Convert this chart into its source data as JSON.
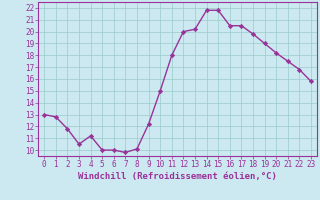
{
  "x": [
    0,
    1,
    2,
    3,
    4,
    5,
    6,
    7,
    8,
    9,
    10,
    11,
    12,
    13,
    14,
    15,
    16,
    17,
    18,
    19,
    20,
    21,
    22,
    23
  ],
  "y": [
    13,
    12.8,
    11.8,
    10.5,
    11.2,
    10.0,
    10.0,
    9.8,
    10.1,
    12.2,
    15.0,
    18.0,
    20.0,
    20.2,
    21.8,
    21.8,
    20.5,
    20.5,
    19.8,
    19.0,
    18.2,
    17.5,
    16.8,
    15.8
  ],
  "line_color": "#993399",
  "marker": "D",
  "marker_size": 2.2,
  "bg_color": "#cce8f0",
  "grid_color": "#99cccc",
  "xlabel": "Windchill (Refroidissement éolien,°C)",
  "ylim": [
    9.5,
    22.5
  ],
  "xlim": [
    -0.5,
    23.5
  ],
  "yticks": [
    10,
    11,
    12,
    13,
    14,
    15,
    16,
    17,
    18,
    19,
    20,
    21,
    22
  ],
  "xticks": [
    0,
    1,
    2,
    3,
    4,
    5,
    6,
    7,
    8,
    9,
    10,
    11,
    12,
    13,
    14,
    15,
    16,
    17,
    18,
    19,
    20,
    21,
    22,
    23
  ],
  "tick_fontsize": 5.5,
  "xlabel_fontsize": 6.5,
  "line_width": 1.0
}
